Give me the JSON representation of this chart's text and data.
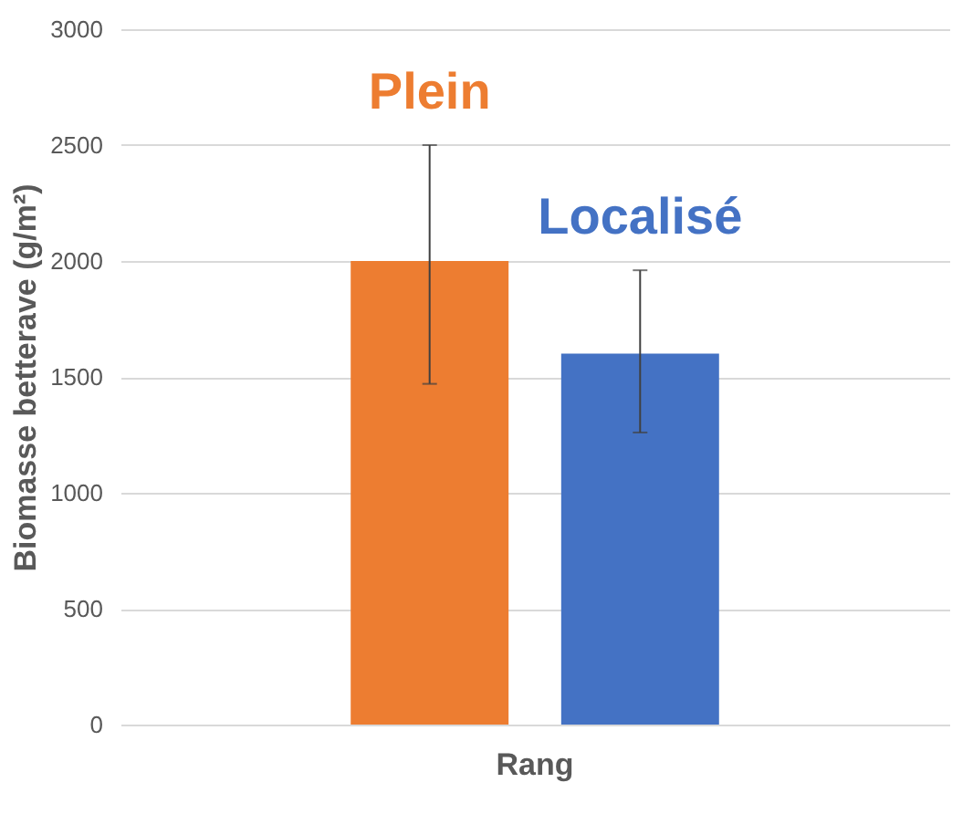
{
  "chart_data": {
    "type": "bar",
    "ylabel": "Biomasse betterave (g/m²)",
    "categories": [
      "Rang"
    ],
    "series": [
      {
        "name": "Plein",
        "color": "#ed7d31",
        "values": [
          2000
        ],
        "errors": [
          [
            1470,
            2500
          ]
        ]
      },
      {
        "name": "Localisé",
        "color": "#4472c4",
        "values": [
          1600
        ],
        "errors": [
          [
            1260,
            1960
          ]
        ]
      }
    ],
    "ylim": [
      0,
      3000
    ],
    "yticks": [
      0,
      500,
      1000,
      1500,
      2000,
      2500,
      3000
    ],
    "grid": "y",
    "legend": false
  }
}
